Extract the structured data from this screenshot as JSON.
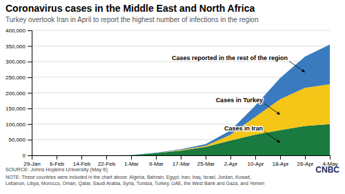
{
  "chart_data": {
    "type": "area",
    "stacked": true,
    "title": "Coronavirus cases in the Middle East and North Africa",
    "subtitle": "Turkey overtook Iran in April to report the highest number of infections in the region",
    "categories": [
      "29-Jan",
      "6-Feb",
      "14-Feb",
      "22-Feb",
      "1-Mar",
      "9-Mar",
      "17-Mar",
      "25-Mar",
      "2-Apr",
      "10-Apr",
      "18-Apr",
      "26-Apr",
      "4-May"
    ],
    "series": [
      {
        "name": "Cases in Iran",
        "color": "#1a7a40",
        "values": [
          0,
          1,
          6,
          28,
          388,
          7161,
          14991,
          27017,
          47593,
          66220,
          80868,
          93657,
          99970
        ]
      },
      {
        "name": "Cases in Turkey",
        "color": "#f5c518",
        "values": [
          0,
          0,
          0,
          0,
          0,
          191,
          1872,
          3629,
          18135,
          56956,
          98674,
          122392,
          127659
        ]
      },
      {
        "name": "Cases reported in the rest of the region",
        "color": "#3a7bbf",
        "values": [
          0,
          10,
          35,
          60,
          120,
          900,
          2500,
          5000,
          14000,
          36000,
          68000,
          100000,
          127000
        ]
      }
    ],
    "ylim": [
      0,
      400000
    ],
    "yticks": [
      0,
      {
        "value": 50000,
        "label": "50,000"
      },
      {
        "value": 100000,
        "label": "100,000"
      },
      {
        "value": 150000,
        "label": "150,000"
      },
      {
        "value": 200000,
        "label": "200,000"
      },
      {
        "value": 250000,
        "label": "250,000"
      },
      {
        "value": 300000,
        "label": "300,000"
      },
      {
        "value": 350000,
        "label": "350,000"
      },
      {
        "value": 400000,
        "label": "400,000"
      }
    ],
    "grid": true,
    "source": "SOURCE: Johns Hopkins University (May 6)",
    "note": "NOTE: These countries were included in the chart above: Algeria, Bahrain, Egypt, Iran, Iraq, Israel, Jordan, Kuwait,\nLebanon, Libya, Morocco, Oman, Qatar, Saudi Arabia, Syria, Tunisia, Turkey, UAE, the West Bank and Gaza, and Yemen",
    "annotations": [
      "CNBC"
    ]
  }
}
